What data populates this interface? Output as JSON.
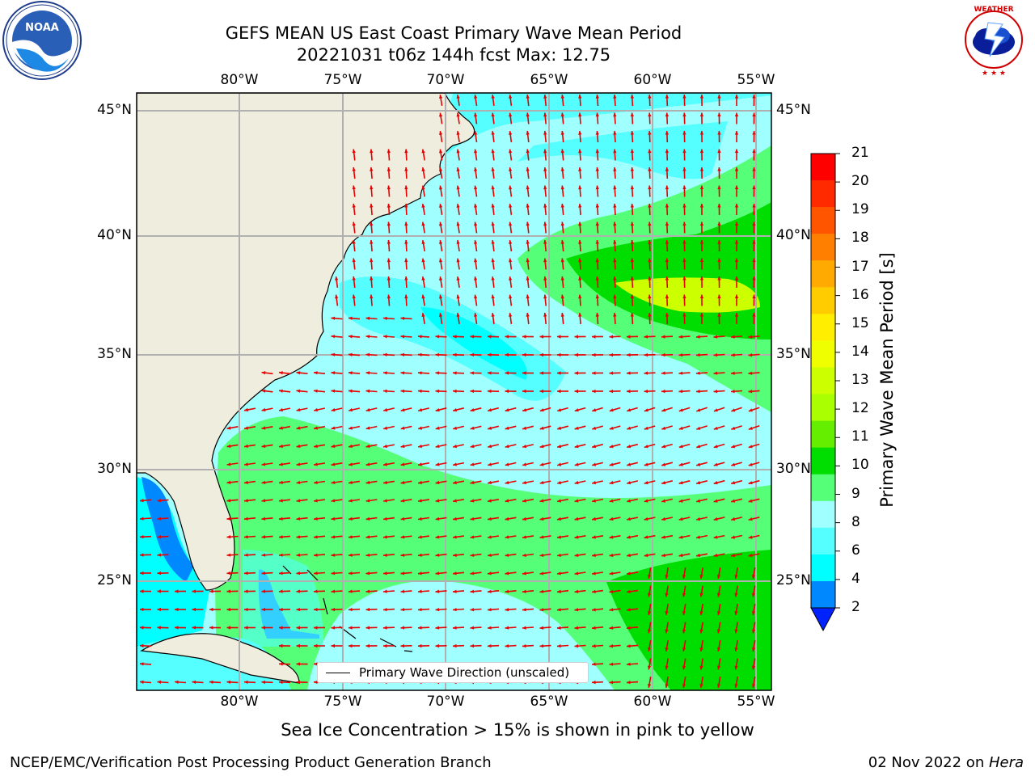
{
  "title": {
    "line1": "GEFS MEAN US East Coast Primary Wave Mean Period",
    "line2": "20221031 t06z 144h fcst   Max: 12.75"
  },
  "logos": {
    "left_text": "NOAA",
    "left_ring": "NATIONAL OCEANIC AND ATMOSPHERIC ADMINISTRATION · U.S. DEPARTMENT OF COMMERCE",
    "right_ring": "NATIONAL WEATHER SERVICE"
  },
  "map": {
    "lon_labels": [
      "80°W",
      "75°W",
      "70°W",
      "65°W",
      "60°W",
      "55°W"
    ],
    "lat_labels": [
      "45°N",
      "40°N",
      "35°N",
      "30°N",
      "25°N"
    ],
    "legend_label": "Primary Wave Direction (unscaled)",
    "colors": {
      "land": "#efedde",
      "grid": "#b0b0b0",
      "arrow": "#e80000",
      "coast": "#000000"
    }
  },
  "colorbar": {
    "label": "Primary Wave Mean Period [s]",
    "ticks": [
      "21",
      "20",
      "19",
      "18",
      "17",
      "16",
      "15",
      "14",
      "13",
      "12",
      "11",
      "10",
      "9",
      "8",
      "6",
      "4",
      "2"
    ],
    "colors": [
      "#ff0000",
      "#ff2a00",
      "#ff5500",
      "#ff8000",
      "#ffaa00",
      "#ffcc00",
      "#ffee00",
      "#f0ff00",
      "#ccff00",
      "#aaff00",
      "#66ee00",
      "#00dd00",
      "#55ff77",
      "#a0ffff",
      "#55ffff",
      "#00ffff",
      "#0088ff",
      "#0022ff"
    ]
  },
  "footer": {
    "sea_ice_note": "Sea Ice Concentration > 15% is shown in pink to yellow",
    "left": "NCEP/EMC/Verification Post Processing Product Generation Branch",
    "right_prefix": "02 Nov 2022 on ",
    "right_host": "Hera"
  }
}
